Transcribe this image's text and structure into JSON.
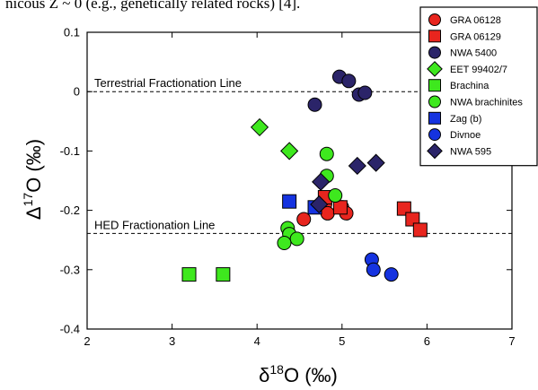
{
  "header": {
    "fragment": "nicous Z ~ 0 (e.g., genetically related rocks) [4]."
  },
  "chart_data": {
    "type": "scatter",
    "xlabel": "δ¹⁸O (‰)",
    "ylabel": "Δ¹⁷O (‰)",
    "xlim": [
      2,
      7
    ],
    "ylim": [
      -0.4,
      0.1
    ],
    "xticks": [
      "2",
      "3",
      "4",
      "5",
      "6",
      "7"
    ],
    "yticks": [
      "-0.4",
      "-0.3",
      "-0.2",
      "-0.1",
      "0",
      "0.1"
    ],
    "grid": false,
    "legend_position": "top-right",
    "reference_lines": [
      {
        "label": "Terrestrial Fractionation Line",
        "y": 0
      },
      {
        "label": "HED Fractionation Line",
        "y": -0.239
      }
    ],
    "series": [
      {
        "name": "GRA 06128",
        "marker": "circle",
        "color": "#e8251e",
        "points": [
          [
            4.55,
            -0.215
          ],
          [
            4.8,
            -0.19
          ],
          [
            4.83,
            -0.205
          ],
          [
            5.0,
            -0.195
          ],
          [
            5.05,
            -0.205
          ]
        ]
      },
      {
        "name": "GRA 06129",
        "marker": "square",
        "color": "#e8251e",
        "points": [
          [
            4.8,
            -0.178
          ],
          [
            4.98,
            -0.195
          ],
          [
            5.73,
            -0.197
          ],
          [
            5.83,
            -0.215
          ],
          [
            5.92,
            -0.233
          ]
        ]
      },
      {
        "name": "NWA 5400",
        "marker": "circle",
        "color": "#2b2469",
        "points": [
          [
            4.68,
            -0.022
          ],
          [
            4.97,
            0.025
          ],
          [
            5.08,
            0.018
          ],
          [
            5.2,
            -0.005
          ],
          [
            5.27,
            -0.002
          ]
        ]
      },
      {
        "name": "EET 99402/7",
        "marker": "diamond",
        "color": "#3ee81e",
        "points": [
          [
            4.03,
            -0.06
          ],
          [
            4.38,
            -0.1
          ]
        ]
      },
      {
        "name": "Brachina",
        "marker": "square",
        "color": "#3ee81e",
        "points": [
          [
            3.2,
            -0.308
          ],
          [
            3.6,
            -0.308
          ]
        ]
      },
      {
        "name": "NWA brachinites",
        "marker": "circle",
        "color": "#3ee81e",
        "points": [
          [
            4.82,
            -0.105
          ],
          [
            4.82,
            -0.142
          ],
          [
            4.92,
            -0.175
          ],
          [
            4.36,
            -0.23
          ],
          [
            4.38,
            -0.24
          ],
          [
            4.47,
            -0.248
          ],
          [
            4.32,
            -0.255
          ]
        ]
      },
      {
        "name": "Zag (b)",
        "marker": "square",
        "color": "#1533e0",
        "points": [
          [
            4.38,
            -0.185
          ],
          [
            4.68,
            -0.195
          ]
        ]
      },
      {
        "name": "Divnoe",
        "marker": "circle",
        "color": "#1533e0",
        "points": [
          [
            5.35,
            -0.283
          ],
          [
            5.37,
            -0.3
          ],
          [
            5.58,
            -0.308
          ]
        ]
      },
      {
        "name": "NWA 595",
        "marker": "diamond",
        "color": "#2b2469",
        "points": [
          [
            5.18,
            -0.125
          ],
          [
            5.4,
            -0.12
          ],
          [
            4.75,
            -0.152
          ],
          [
            4.73,
            -0.19
          ]
        ]
      }
    ]
  }
}
